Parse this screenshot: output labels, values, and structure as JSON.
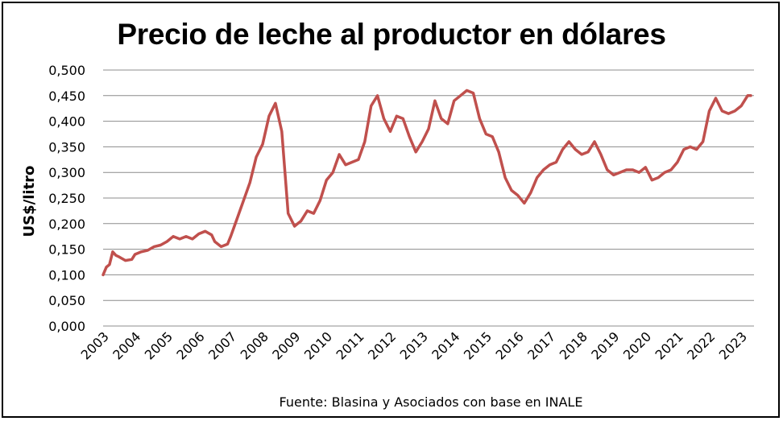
{
  "chart_data": {
    "type": "line",
    "title": "Precio de leche al productor en dólares",
    "ylabel": "US$/litro",
    "xlabel": "",
    "source": "Fuente: Blasina y Asociados con base en INALE",
    "ylim": [
      0,
      0.5
    ],
    "yticks": [
      "0,000",
      "0,050",
      "0,100",
      "0,150",
      "0,200",
      "0,250",
      "0,300",
      "0,350",
      "0,400",
      "0,450",
      "0,500"
    ],
    "xticks": [
      "2003",
      "2004",
      "2005",
      "2006",
      "2007",
      "2008",
      "2009",
      "2010",
      "2011",
      "2012",
      "2013",
      "2014",
      "2015",
      "2016",
      "2017",
      "2018",
      "2019",
      "2020",
      "2021",
      "2022",
      "2023"
    ],
    "grid": true,
    "legend": "none",
    "colors": {
      "line": "#C0504D",
      "grid": "#8c8c8c"
    },
    "series": [
      {
        "x": [
          2003.0,
          2003.1,
          2003.2,
          2003.3,
          2003.4,
          2003.5,
          2003.7,
          2003.9,
          2004.0,
          2004.2,
          2004.4,
          2004.6,
          2004.8,
          2005.0,
          2005.2,
          2005.4,
          2005.6,
          2005.8,
          2006.0,
          2006.2,
          2006.4,
          2006.5,
          2006.7,
          2006.9,
          2007.0,
          2007.2,
          2007.4,
          2007.6,
          2007.8,
          2008.0,
          2008.2,
          2008.4,
          2008.6,
          2008.8,
          2009.0,
          2009.1,
          2009.2,
          2009.4,
          2009.6,
          2009.8,
          2010.0,
          2010.2,
          2010.4,
          2010.6,
          2010.8,
          2011.0,
          2011.2,
          2011.4,
          2011.6,
          2011.8,
          2012.0,
          2012.2,
          2012.4,
          2012.6,
          2012.8,
          2013.0,
          2013.2,
          2013.4,
          2013.6,
          2013.8,
          2014.0,
          2014.2,
          2014.4,
          2014.6,
          2014.8,
          2015.0,
          2015.2,
          2015.4,
          2015.6,
          2015.8,
          2016.0,
          2016.2,
          2016.4,
          2016.6,
          2016.8,
          2017.0,
          2017.2,
          2017.4,
          2017.6,
          2017.8,
          2018.0,
          2018.2,
          2018.4,
          2018.6,
          2018.8,
          2019.0,
          2019.2,
          2019.4,
          2019.6,
          2019.8,
          2020.0,
          2020.2,
          2020.4,
          2020.6,
          2020.8,
          2021.0,
          2021.2,
          2021.4,
          2021.6,
          2021.8,
          2022.0,
          2022.2,
          2022.4,
          2022.6,
          2022.8,
          2023.0,
          2023.2,
          2023.3
        ],
        "values": [
          0.1,
          0.115,
          0.12,
          0.145,
          0.138,
          0.135,
          0.128,
          0.13,
          0.14,
          0.145,
          0.148,
          0.155,
          0.158,
          0.165,
          0.175,
          0.17,
          0.175,
          0.17,
          0.18,
          0.185,
          0.178,
          0.165,
          0.155,
          0.16,
          0.175,
          0.21,
          0.245,
          0.28,
          0.33,
          0.355,
          0.41,
          0.435,
          0.38,
          0.22,
          0.195,
          0.2,
          0.205,
          0.225,
          0.22,
          0.245,
          0.285,
          0.3,
          0.335,
          0.315,
          0.32,
          0.325,
          0.36,
          0.43,
          0.45,
          0.405,
          0.38,
          0.41,
          0.405,
          0.37,
          0.34,
          0.36,
          0.385,
          0.44,
          0.405,
          0.395,
          0.44,
          0.45,
          0.46,
          0.455,
          0.405,
          0.375,
          0.37,
          0.34,
          0.29,
          0.265,
          0.255,
          0.24,
          0.26,
          0.29,
          0.305,
          0.315,
          0.32,
          0.345,
          0.36,
          0.345,
          0.335,
          0.34,
          0.36,
          0.335,
          0.305,
          0.295,
          0.3,
          0.305,
          0.305,
          0.3,
          0.31,
          0.285,
          0.29,
          0.3,
          0.305,
          0.32,
          0.345,
          0.35,
          0.345,
          0.36,
          0.42,
          0.445,
          0.42,
          0.415,
          0.42,
          0.43,
          0.45,
          0.45
        ]
      }
    ]
  }
}
